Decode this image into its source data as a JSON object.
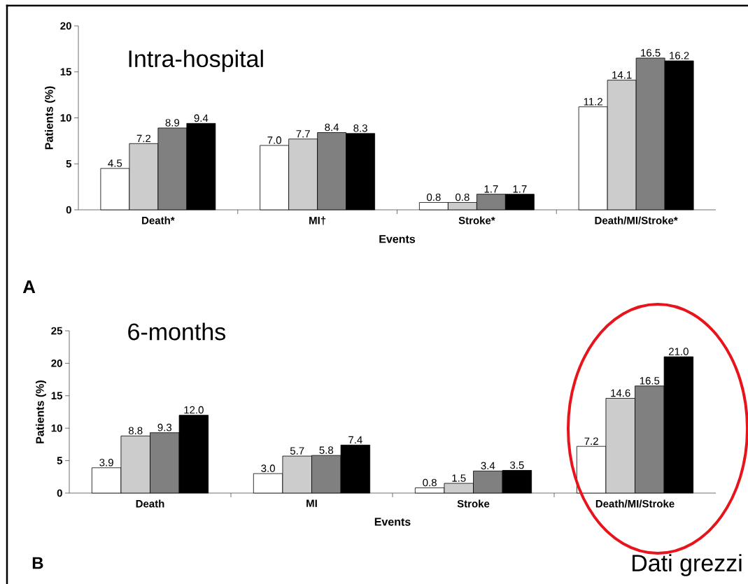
{
  "chart_data": [
    {
      "type": "bar",
      "title": "Intra-hospital",
      "xlabel": "Events",
      "ylabel": "Patients (%)",
      "categories": [
        "Death*",
        "MI†",
        "Stroke*",
        "Death/MI/Stroke*"
      ],
      "series": [
        {
          "color": "#ffffff",
          "values": [
            4.5,
            7.0,
            0.8,
            11.2
          ],
          "value_labels": [
            "4.5",
            "7.0",
            "0.8",
            "11.2"
          ]
        },
        {
          "color": "#cccccc",
          "values": [
            7.2,
            7.7,
            0.8,
            14.1
          ],
          "value_labels": [
            "7.2",
            "7.7",
            "0.8",
            "14.1"
          ]
        },
        {
          "color": "#808080",
          "values": [
            8.9,
            8.4,
            1.7,
            16.5
          ],
          "value_labels": [
            "8.9",
            "8.4",
            "1.7",
            "16.5"
          ]
        },
        {
          "color": "#000000",
          "values": [
            9.4,
            8.3,
            1.7,
            16.2
          ],
          "value_labels": [
            "9.4",
            "8.3",
            "1.7",
            "16.2"
          ]
        }
      ],
      "ylim": [
        0,
        20
      ],
      "yticks": [
        0,
        5,
        10,
        15,
        20
      ],
      "annotations": [
        "A"
      ]
    },
    {
      "type": "bar",
      "title": "6-months",
      "xlabel": "Events",
      "ylabel": "Patients (%)",
      "categories": [
        "Death",
        "MI",
        "Stroke",
        "Death/MI/Stroke"
      ],
      "series": [
        {
          "color": "#ffffff",
          "values": [
            3.9,
            3.0,
            0.8,
            7.2
          ],
          "value_labels": [
            "3.9",
            "3.0",
            "0.8",
            "7.2"
          ]
        },
        {
          "color": "#cccccc",
          "values": [
            8.8,
            5.7,
            1.5,
            14.6
          ],
          "value_labels": [
            "8.8",
            "5.7",
            "1.5",
            "14.6"
          ]
        },
        {
          "color": "#808080",
          "values": [
            9.3,
            5.8,
            3.4,
            16.5
          ],
          "value_labels": [
            "9.3",
            "5.8",
            "3.4",
            "16.5"
          ]
        },
        {
          "color": "#000000",
          "values": [
            12.0,
            7.4,
            3.5,
            21.0
          ],
          "value_labels": [
            "12.0",
            "7.4",
            "3.5",
            "21.0"
          ]
        }
      ],
      "ylim": [
        0,
        25
      ],
      "yticks": [
        0,
        5,
        10,
        15,
        20,
        25
      ],
      "annotations": [
        "B",
        "Dati grezzi"
      ]
    }
  ]
}
